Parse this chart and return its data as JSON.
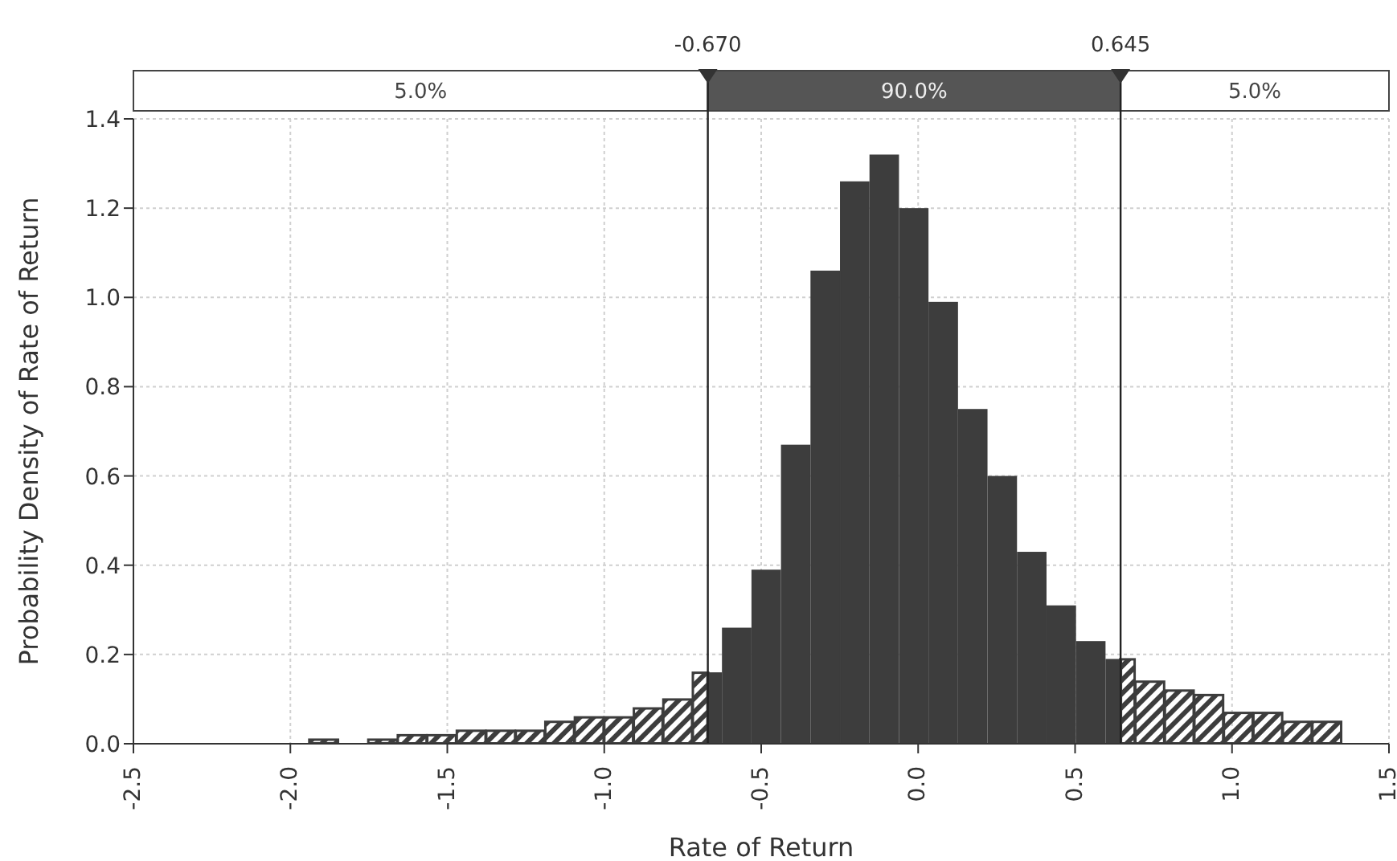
{
  "chart_data": {
    "type": "histogram",
    "xlabel": "Rate of Return",
    "ylabel": "Probability Density of Rate of Return",
    "bins": [
      -1.941,
      -1.847,
      -1.753,
      -1.659,
      -1.565,
      -1.471,
      -1.377,
      -1.283,
      -1.189,
      -1.095,
      -1.001,
      -0.907,
      -0.813,
      -0.719,
      -0.625,
      -0.531,
      -0.437,
      -0.343,
      -0.249,
      -0.155,
      -0.061,
      0.033,
      0.127,
      0.221,
      0.315,
      0.409,
      0.503,
      0.597,
      0.691,
      0.785,
      0.879,
      0.973,
      1.067,
      1.161,
      1.255,
      1.349
    ],
    "values": [
      0.01,
      0,
      0.01,
      0.02,
      0.02,
      0.03,
      0.03,
      0.03,
      0.05,
      0.06,
      0.06,
      0.08,
      0.1,
      0.16,
      0.26,
      0.39,
      0.67,
      1.06,
      1.26,
      1.32,
      1.2,
      0.99,
      0.75,
      0.6,
      0.43,
      0.31,
      0.23,
      0.19,
      0.14,
      0.12,
      0.11,
      0.07,
      0.07,
      0.05,
      0.05
    ],
    "color": "#3d3d3d",
    "xlim": [
      -2.5,
      1.5
    ],
    "xticks": [
      -2.5,
      {
        "value": -2,
        "label": "-2.0"
      },
      -1.5,
      {
        "value": -1,
        "label": "-1.0"
      },
      -0.5,
      {
        "value": 0,
        "label": "0.0"
      },
      0.5,
      {
        "value": 1,
        "label": "1.0"
      },
      1.5
    ],
    "ylim": [
      0,
      1.4
    ],
    "yticks": [
      {
        "value": 0,
        "label": "0.0"
      },
      0.2,
      0.4,
      0.6,
      0.8,
      {
        "value": 1,
        "label": "1.0"
      },
      1.2,
      1.4
    ],
    "grid": true,
    "ref_lines": [
      {
        "axis": "x",
        "value": -0.67,
        "label": "-0.670",
        "color": "#222222"
      },
      {
        "axis": "x",
        "value": 0.645,
        "label": "0.645",
        "color": "#222222"
      }
    ],
    "annotations": [
      "5.0%",
      "90.0%",
      "5.0%"
    ]
  }
}
